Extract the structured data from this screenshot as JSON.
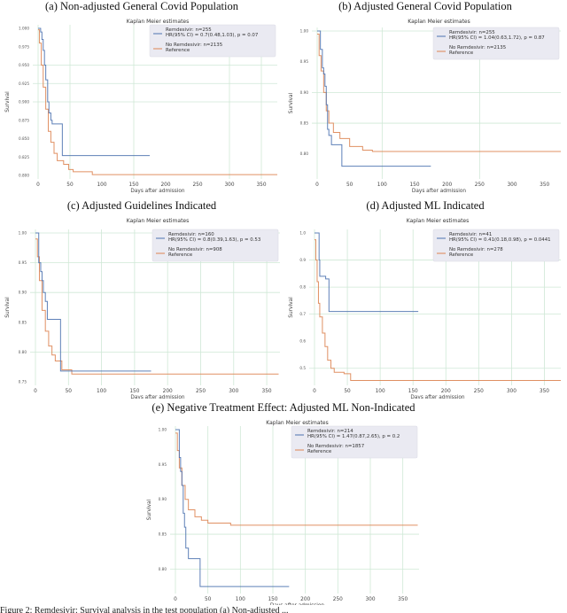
{
  "figure": {
    "caption": "Figure 2: Remdesivir: Survival analysis in the test population (a) Non-adjusted ..."
  },
  "common": {
    "plot_title": "Kaplan Meier estimates",
    "xlabel": "Days after admission",
    "ylabel": "Survival",
    "x_ticks": [
      "0",
      "50",
      "100",
      "150",
      "200",
      "250",
      "300",
      "350"
    ],
    "colors": {
      "remdesivir": "#4c72b0",
      "no_remdesivir": "#dd8452",
      "grid": "#cfe8d6",
      "legend_bg": "#eaeaf2"
    }
  },
  "panels": [
    {
      "id": "a",
      "title": "(a) Non-adjusted General Covid Population",
      "y_ticks": [
        "1.000",
        "0.975",
        "0.950",
        "0.925",
        "0.900",
        "0.875",
        "0.850",
        "0.825",
        "0.800"
      ],
      "legend": {
        "s1_line1": "Remdesivir: n=255",
        "s1_line2": "HR(95% CI) = 0.7(0.48,1.03), p = 0.07",
        "s2_line1": "No Remdesivir: n=2135",
        "s2_line2": "Reference"
      }
    },
    {
      "id": "b",
      "title": "(b) Adjusted General Covid Population",
      "y_ticks": [
        "1.00",
        "0.95",
        "0.90",
        "0.85",
        "0.80"
      ],
      "legend": {
        "s1_line1": "Remdesivir: n=255",
        "s1_line2": "HR(95% CI) = 1.04(0.63,1.72), p = 0.87",
        "s2_line1": "No Remdesivir: n=2135",
        "s2_line2": "Reference"
      }
    },
    {
      "id": "c",
      "title": "(c) Adjusted Guidelines Indicated",
      "y_ticks": [
        "1.00",
        "0.95",
        "0.90",
        "0.85",
        "0.80",
        "0.75"
      ],
      "legend": {
        "s1_line1": "Remdesivir: n=160",
        "s1_line2": "HR(95% CI) = 0.8(0.39,1.63), p = 0.53",
        "s2_line1": "No Remdesivir: n=908",
        "s2_line2": "Reference"
      }
    },
    {
      "id": "d",
      "title": "(d) Adjusted ML Indicated",
      "y_ticks": [
        "1.0",
        "0.9",
        "0.8",
        "0.7",
        "0.6",
        "0.5"
      ],
      "legend": {
        "s1_line1": "Remdesivir: n=41",
        "s1_line2": "HR(95% CI) = 0.41(0.18,0.98), p = 0.0441",
        "s2_line1": "No Remdesivir: n=278",
        "s2_line2": "Reference"
      }
    },
    {
      "id": "e",
      "title": "(e) Negative Treatment Effect: Adjusted ML Non-Indicated",
      "y_ticks": [
        "1.00",
        "0.95",
        "0.90",
        "0.85",
        "0.80"
      ],
      "legend": {
        "s1_line1": "Remdesivir: n=214",
        "s1_line2": "HR(95% CI) = 1.47(0.87,2.65), p = 0.2",
        "s2_line1": "No Remdesivir: n=1857",
        "s2_line2": "Reference"
      }
    }
  ],
  "chart_data": [
    {
      "type": "line",
      "title": "(a) Non-adjusted General Covid Population — Kaplan Meier estimates",
      "xlabel": "Days after admission",
      "ylabel": "Survival",
      "xlim": [
        0,
        375
      ],
      "ylim": [
        0.8,
        1.0
      ],
      "grid": true,
      "legend_position": "upper right",
      "series": [
        {
          "name": "Remdesivir: n=255 (HR 0.7 (0.48,1.03), p=0.07)",
          "x": [
            0,
            2,
            4,
            6,
            8,
            10,
            12,
            15,
            17,
            20,
            22,
            37,
            38,
            175
          ],
          "y": [
            1.0,
            1.0,
            0.995,
            0.985,
            0.97,
            0.95,
            0.93,
            0.9,
            0.885,
            0.875,
            0.87,
            0.87,
            0.827,
            0.827
          ]
        },
        {
          "name": "No Remdesivir: n=2135 (Reference)",
          "x": [
            0,
            2,
            5,
            8,
            12,
            16,
            20,
            25,
            30,
            40,
            48,
            55,
            85,
            375
          ],
          "y": [
            0.998,
            0.98,
            0.95,
            0.92,
            0.89,
            0.86,
            0.845,
            0.83,
            0.82,
            0.815,
            0.808,
            0.805,
            0.801,
            0.801
          ]
        }
      ]
    },
    {
      "type": "line",
      "title": "(b) Adjusted General Covid Population — Kaplan Meier estimates",
      "xlabel": "Days after admission",
      "ylabel": "Survival",
      "xlim": [
        0,
        375
      ],
      "ylim": [
        0.765,
        1.0
      ],
      "grid": true,
      "legend_position": "upper right",
      "series": [
        {
          "name": "Remdesivir: n=255 (HR 1.04 (0.63,1.72), p=0.87)",
          "x": [
            0,
            3,
            5,
            8,
            10,
            12,
            14,
            16,
            18,
            22,
            37,
            38,
            175
          ],
          "y": [
            1.0,
            1.0,
            0.97,
            0.94,
            0.93,
            0.91,
            0.88,
            0.84,
            0.83,
            0.815,
            0.815,
            0.78,
            0.78
          ]
        },
        {
          "name": "No Remdesivir: n=2135 (Reference)",
          "x": [
            0,
            3,
            6,
            10,
            14,
            18,
            25,
            35,
            50,
            70,
            85,
            375
          ],
          "y": [
            0.995,
            0.96,
            0.935,
            0.9,
            0.87,
            0.85,
            0.835,
            0.825,
            0.812,
            0.806,
            0.804,
            0.804
          ]
        }
      ]
    },
    {
      "type": "line",
      "title": "(c) Adjusted Guidelines Indicated — Kaplan Meier estimates",
      "xlabel": "Days after admission",
      "ylabel": "Survival",
      "xlim": [
        0,
        370
      ],
      "ylim": [
        0.75,
        1.0
      ],
      "grid": true,
      "legend_position": "upper right",
      "series": [
        {
          "name": "Remdesivir: n=160 (HR 0.8 (0.39,1.63), p=0.53)",
          "x": [
            0,
            4,
            5,
            8,
            10,
            12,
            15,
            18,
            36,
            38,
            175
          ],
          "y": [
            1.0,
            1.0,
            0.95,
            0.935,
            0.92,
            0.9,
            0.885,
            0.855,
            0.855,
            0.768,
            0.768
          ]
        },
        {
          "name": "No Remdesivir: n=908 (Reference)",
          "x": [
            0,
            3,
            6,
            10,
            15,
            20,
            25,
            30,
            40,
            55,
            368
          ],
          "y": [
            0.99,
            0.96,
            0.92,
            0.87,
            0.835,
            0.81,
            0.795,
            0.785,
            0.77,
            0.763,
            0.763
          ]
        }
      ]
    },
    {
      "type": "line",
      "title": "(d) Adjusted ML Indicated — Kaplan Meier estimates",
      "xlabel": "Days after admission",
      "ylabel": "Survival",
      "xlim": [
        0,
        375
      ],
      "ylim": [
        0.45,
        1.0
      ],
      "grid": true,
      "legend_position": "upper right",
      "series": [
        {
          "name": "Remdesivir: n=41 (HR 0.41 (0.18,0.98), p=0.0441)",
          "x": [
            0,
            6,
            7,
            8,
            16,
            17,
            21,
            22,
            158
          ],
          "y": [
            1.0,
            1.0,
            0.9,
            0.84,
            0.84,
            0.83,
            0.83,
            0.71,
            0.71
          ]
        },
        {
          "name": "No Remdesivir: n=278 (Reference)",
          "x": [
            0,
            2,
            4,
            6,
            8,
            12,
            16,
            20,
            25,
            30,
            45,
            55,
            375
          ],
          "y": [
            0.975,
            0.9,
            0.82,
            0.74,
            0.69,
            0.63,
            0.58,
            0.53,
            0.5,
            0.485,
            0.48,
            0.455,
            0.455
          ]
        }
      ]
    },
    {
      "type": "line",
      "title": "(e) Negative Treatment Effect: Adjusted ML Non-Indicated — Kaplan Meier estimates",
      "xlabel": "Days after admission",
      "ylabel": "Survival",
      "xlim": [
        0,
        375
      ],
      "ylim": [
        0.77,
        1.0
      ],
      "grid": true,
      "legend_position": "upper right",
      "series": [
        {
          "name": "Remdesivir: n=214 (HR 1.47 (0.87,2.65), p=0.2)",
          "x": [
            0,
            4,
            6,
            8,
            10,
            12,
            14,
            16,
            20,
            37,
            38,
            175
          ],
          "y": [
            1.0,
            1.0,
            0.96,
            0.94,
            0.92,
            0.88,
            0.86,
            0.83,
            0.815,
            0.815,
            0.775,
            0.775
          ]
        },
        {
          "name": "No Remdesivir: n=1857 (Reference)",
          "x": [
            0,
            3,
            6,
            10,
            15,
            20,
            30,
            40,
            50,
            85,
            373
          ],
          "y": [
            0.995,
            0.97,
            0.945,
            0.92,
            0.9,
            0.885,
            0.875,
            0.87,
            0.866,
            0.863,
            0.863
          ]
        }
      ]
    }
  ]
}
